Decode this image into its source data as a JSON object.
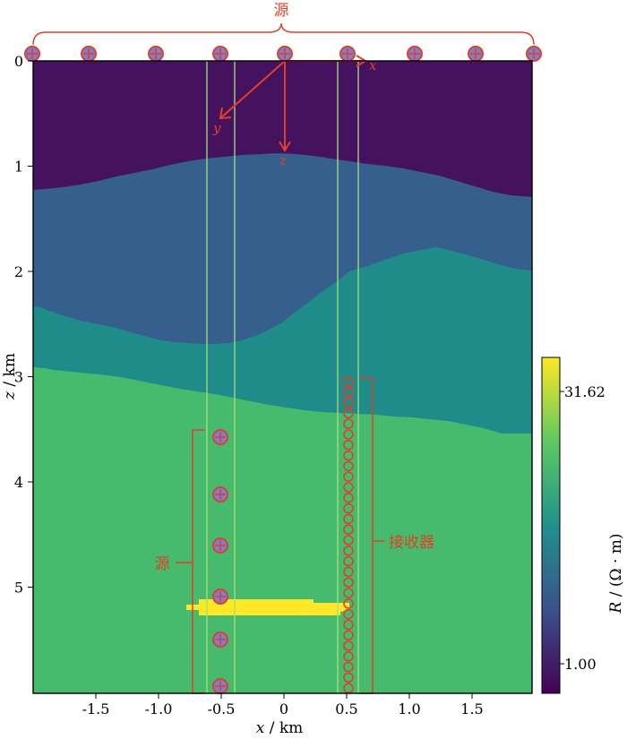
{
  "top_label": "源",
  "left_source_label": "源",
  "receiver_label": "接收器",
  "xlabel_var": "x",
  "xlabel_unit": " / km",
  "ylabel_var": "z",
  "ylabel_unit": " / km",
  "colorbar_label_var": "R",
  "colorbar_label_unit": " / (Ω · m)",
  "colorbar_max_label": "31.62",
  "colorbar_min_label": "1.00",
  "axis_x_letter": "x",
  "axis_y_letter": "y",
  "axis_z_letter": "z",
  "x_ticks": [
    {
      "value": -1.5,
      "label": "-1.5"
    },
    {
      "value": -1.0,
      "label": "-1.0"
    },
    {
      "value": -0.5,
      "label": "-0.5"
    },
    {
      "value": 0,
      "label": "0"
    },
    {
      "value": 0.5,
      "label": "0.5"
    },
    {
      "value": 1.0,
      "label": "1.0"
    },
    {
      "value": 1.5,
      "label": "1.5"
    }
  ],
  "z_ticks": [
    {
      "value": 0,
      "label": "0"
    },
    {
      "value": 1,
      "label": "1"
    },
    {
      "value": 2,
      "label": "2"
    },
    {
      "value": 3,
      "label": "3"
    },
    {
      "value": 4,
      "label": "4"
    },
    {
      "value": 5,
      "label": "5"
    }
  ],
  "colors": {
    "layer1": "#44125f",
    "layer2": "#355f8c",
    "layer3": "#1f8c8a",
    "layer4": "#46bb6d",
    "anomaly": "#fde726",
    "annotation": "#e0402a",
    "guide_line": "#a6e07a",
    "source_fill": "#7b7fcf"
  }
}
